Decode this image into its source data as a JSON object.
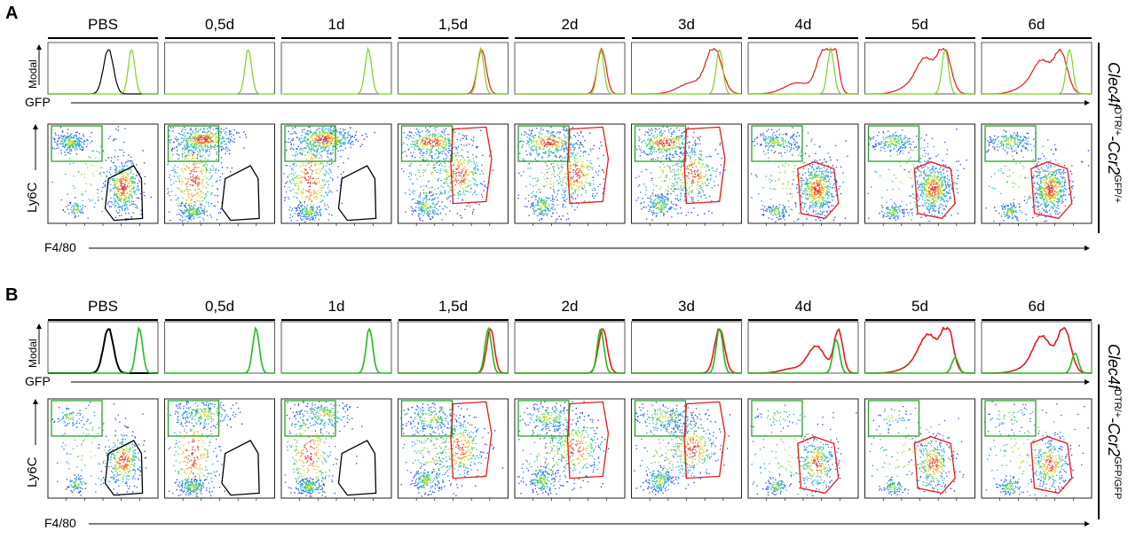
{
  "panels": [
    {
      "letter": "A",
      "columns": [
        "PBS",
        "0,5d",
        "1d",
        "1,5d",
        "2d",
        "3d",
        "4d",
        "5d",
        "6d"
      ],
      "histogram_y_label": "Modal",
      "histogram_x_label": "GFP",
      "dotplot_y_label": "Ly6C",
      "dotplot_x_label": "F4/80",
      "genotype": {
        "gene1": "Clec4f",
        "sup1": "DTR/+",
        "sep": "-",
        "gene2": "Ccr2",
        "sup2": "GFP/+"
      }
    },
    {
      "letter": "B",
      "columns": [
        "PBS",
        "0,5d",
        "1d",
        "1,5d",
        "2d",
        "3d",
        "4d",
        "5d",
        "6d"
      ],
      "histogram_y_label": "Modal",
      "histogram_x_label": "GFP",
      "dotplot_y_label": "Ly6C",
      "dotplot_x_label": "F4/80",
      "genotype": {
        "gene1": "Clec4f",
        "sup1": "DTR/+",
        "sep": "-",
        "gene2": "Ccr2",
        "sup2": "GFP/GFP"
      }
    }
  ],
  "colors": {
    "pbs_gate": "#000000",
    "monocyte_gate": "#2ca02c",
    "macrophage_gate": "#e41a1c",
    "gfp_histogram": "#7ed321",
    "gfp_histogram_b": "#22bb22",
    "f480_histogram": "#e41a1c",
    "pbs_histogram": "#000000",
    "density_low": "#2b2bd6",
    "density_high": "#d62020"
  }
}
